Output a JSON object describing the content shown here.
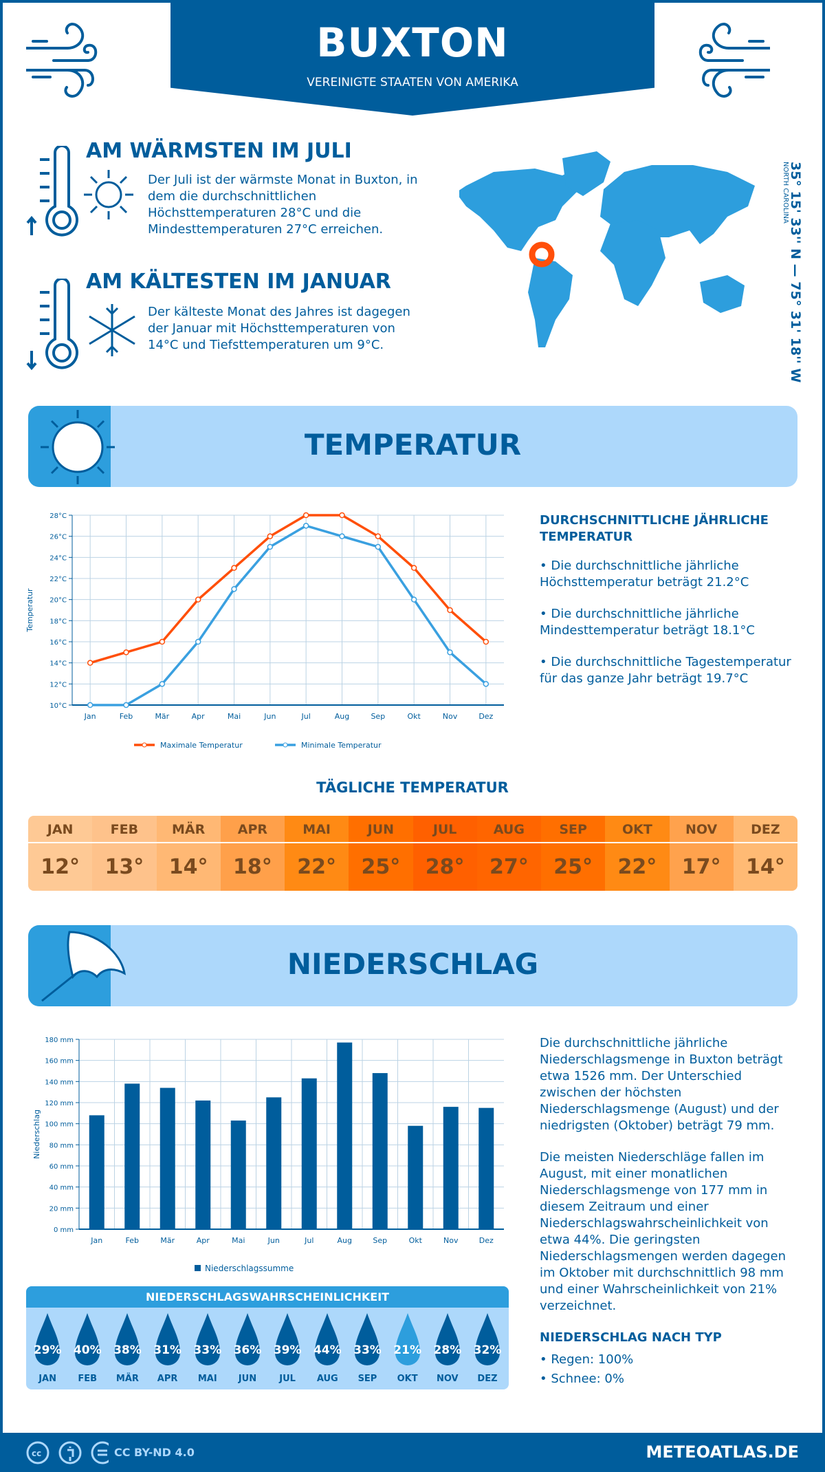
{
  "header": {
    "title": "BUXTON",
    "subtitle": "VEREINIGTE STAATEN VON AMERIKA"
  },
  "warmest": {
    "title": "AM WÄRMSTEN IM JULI",
    "text": "Der Juli ist der wärmste Monat in Buxton, in dem die durchschnittlichen Höchsttemperaturen 28°C und die Mindesttemperaturen 27°C erreichen."
  },
  "coldest": {
    "title": "AM KÄLTESTEN IM JANUAR",
    "text": "Der kälteste Monat des Jahres ist dagegen der Januar mit Höchsttemperaturen von 14°C und Tiefsttemperaturen um 9°C."
  },
  "location": {
    "coords": "35° 15' 33'' N — 75° 31' 18'' W",
    "region": "NORTH CAROLINA"
  },
  "colors": {
    "primary": "#005d9c",
    "accent": "#2d9edd",
    "light": "#add8fb",
    "max": "#ff4f0a",
    "min": "#3aa0e0",
    "marker": "#ff5a14"
  },
  "temperature": {
    "banner": "TEMPERATUR",
    "side_title": "DURCHSCHNITTLICHE JÄHRLICHE TEMPERATUR",
    "bullets": [
      "• Die durchschnittliche jährliche Höchsttemperatur beträgt 21.2°C",
      "• Die durchschnittliche jährliche Mindesttemperatur beträgt 18.1°C",
      "• Die durchschnittliche Tagestemperatur für das ganze Jahr beträgt 19.7°C"
    ]
  },
  "daily": {
    "title": "TÄGLICHE TEMPERATUR",
    "months": [
      "JAN",
      "FEB",
      "MÄR",
      "APR",
      "MAI",
      "JUN",
      "JUL",
      "AUG",
      "SEP",
      "OKT",
      "NOV",
      "DEZ"
    ],
    "values": [
      "12°",
      "13°",
      "14°",
      "18°",
      "22°",
      "25°",
      "28°",
      "27°",
      "25°",
      "22°",
      "17°",
      "14°"
    ],
    "colors": [
      "#fec995",
      "#fec28b",
      "#ffb874",
      "#ffa04a",
      "#ff8a14",
      "#ff6f00",
      "#ff6000",
      "#ff6500",
      "#ff6f00",
      "#ff8a14",
      "#ffa24d",
      "#ffba74"
    ]
  },
  "precipitation": {
    "banner": "NIEDERSCHLAG",
    "text1": "Die durchschnittliche jährliche Niederschlagsmenge in Buxton beträgt etwa 1526 mm. Der Unterschied zwischen der höchsten Niederschlagsmenge (August) und der niedrigsten (Oktober) beträgt 79 mm.",
    "text2": "Die meisten Niederschläge fallen im August, mit einer monatlichen Niederschlagsmenge von 177 mm in diesem Zeitraum und einer Niederschlagswahrscheinlichkeit von etwa 44%. Die geringsten Niederschlagsmengen werden dagegen im Oktober mit durchschnittlich 98 mm und einer Wahrscheinlichkeit von 21% verzeichnet.",
    "type_title": "NIEDERSCHLAG NACH TYP",
    "types": [
      "• Regen: 100%",
      "• Schnee: 0%"
    ]
  },
  "probability": {
    "title": "NIEDERSCHLAGSWAHRSCHEINLICHKEIT",
    "months": [
      "JAN",
      "FEB",
      "MÄR",
      "APR",
      "MAI",
      "JUN",
      "JUL",
      "AUG",
      "SEP",
      "OKT",
      "NOV",
      "DEZ"
    ],
    "values": [
      "29%",
      "40%",
      "38%",
      "31%",
      "33%",
      "36%",
      "39%",
      "44%",
      "33%",
      "21%",
      "28%",
      "32%"
    ],
    "lowest_index": 9
  },
  "footer": {
    "license": "CC BY-ND 4.0",
    "site": "METEOATLAS.DE"
  },
  "chart_data": [
    {
      "type": "line",
      "ylabel": "Temperatur",
      "ylim": [
        10,
        28
      ],
      "yticks": [
        "10°C",
        "12°C",
        "14°C",
        "16°C",
        "18°C",
        "20°C",
        "22°C",
        "24°C",
        "26°C",
        "28°C"
      ],
      "grid": true,
      "legend": "bottom",
      "categories": [
        "Jan",
        "Feb",
        "Mär",
        "Apr",
        "Mai",
        "Jun",
        "Jul",
        "Aug",
        "Sep",
        "Okt",
        "Nov",
        "Dez"
      ],
      "series": [
        {
          "name": "Maximale Temperatur",
          "values": [
            14,
            15,
            16,
            20,
            23,
            26,
            28,
            28,
            26,
            23,
            19,
            16
          ]
        },
        {
          "name": "Minimale Temperatur",
          "values": [
            10,
            10,
            12,
            16,
            21,
            25,
            27,
            26,
            25,
            20,
            15,
            12
          ]
        }
      ]
    },
    {
      "type": "bar",
      "ylabel": "Niederschlag",
      "ylim": [
        0,
        180
      ],
      "yticks": [
        "0 mm",
        "20 mm",
        "40 mm",
        "60 mm",
        "80 mm",
        "100 mm",
        "120 mm",
        "140 mm",
        "160 mm",
        "180 mm"
      ],
      "grid": true,
      "legend": "bottom",
      "categories": [
        "Jan",
        "Feb",
        "Mär",
        "Apr",
        "Mai",
        "Jun",
        "Jul",
        "Aug",
        "Sep",
        "Okt",
        "Nov",
        "Dez"
      ],
      "series": [
        {
          "name": "Niederschlagssumme",
          "values": [
            108,
            138,
            134,
            122,
            103,
            125,
            143,
            177,
            148,
            98,
            116,
            115
          ]
        }
      ]
    }
  ]
}
